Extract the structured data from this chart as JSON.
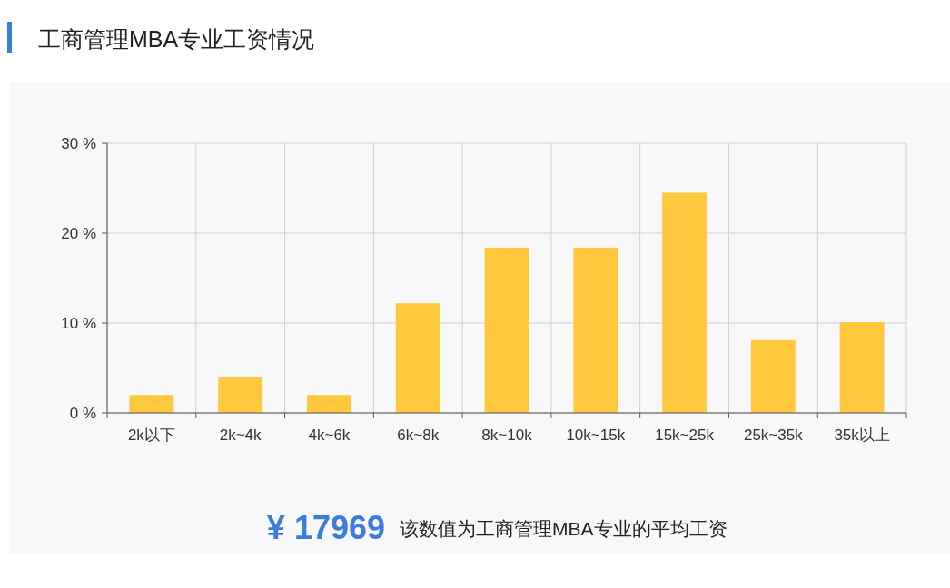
{
  "chart_data": {
    "type": "bar",
    "title": "工商管理MBA专业工资情况",
    "categories": [
      "2k以下",
      "2k~4k",
      "4k~6k",
      "6k~8k",
      "8k~10k",
      "10k~15k",
      "15k~25k",
      "25k~35k",
      "35k以上"
    ],
    "values": [
      2.0,
      4.0,
      2.0,
      12.2,
      18.4,
      18.4,
      24.5,
      8.1,
      10.1
    ],
    "color": "#ffc83d",
    "ylim": [
      0,
      30
    ],
    "yticks": [
      {
        "value": 0,
        "label": "0 %"
      },
      {
        "value": 10,
        "label": "10 %"
      },
      {
        "value": 20,
        "label": "20 %"
      },
      {
        "value": 30,
        "label": "30 %"
      }
    ],
    "grid": true,
    "annotations": [
      "¥ 17969",
      "该数值为工商管理MBA专业的平均工资"
    ]
  }
}
